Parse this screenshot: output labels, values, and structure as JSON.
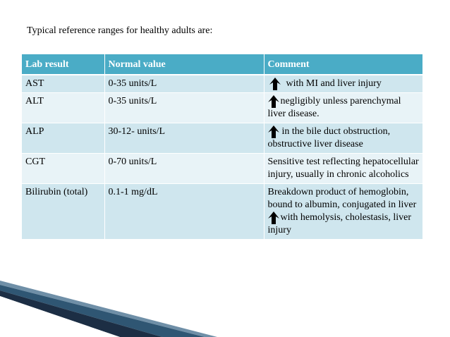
{
  "intro": "Typical reference ranges for healthy adults are:",
  "table": {
    "headers": [
      "Lab result",
      "Normal value",
      "Comment"
    ],
    "rows": [
      {
        "test": "AST",
        "value": "0-35 units/L",
        "comment": "with MI and liver injury",
        "arrow": true
      },
      {
        "test": "ALT",
        "value": "0-35 units/L",
        "comment": "negligibly unless parenchymal liver disease.",
        "arrow": true
      },
      {
        "test": "ALP",
        "value": "30-12- units/L",
        "comment": "in the bile duct obstruction, obstructive liver disease",
        "arrow": true
      },
      {
        "test": "CGT",
        "value": "0-70 units/L",
        "comment": "Sensitive test reflecting hepatocellular injury, usually in chronic alcoholics",
        "arrow": false
      },
      {
        "test": "Bilirubin (total)",
        "value": "0.1-1 mg/dL",
        "comment_pre": "Breakdown  product of hemoglobin, bound to albumin, conjugated in liver",
        "comment": "with hemolysis, cholestasis, liver injury",
        "arrow": true
      }
    ]
  },
  "colors": {
    "header": "#4aacc6",
    "row_dark": "#cfe6ee",
    "row_light": "#e8f3f7",
    "arrow": "#000000"
  },
  "icons": {
    "increase": "up-arrow-icon"
  }
}
